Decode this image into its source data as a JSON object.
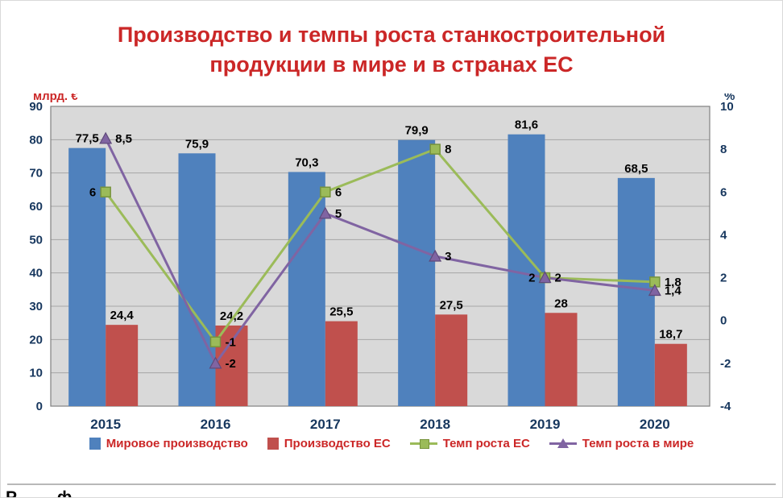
{
  "slide": {
    "title_line1": "Производство и темпы роста станкостроительной",
    "title_line2": "продукции в мире и в странах ЕС",
    "footer_fragment": "Р ф"
  },
  "colors": {
    "title": "#cb2727",
    "axis_text": "#17375e",
    "legend_text": "#cb2727",
    "left_unit": "#cb2727",
    "right_unit": "#17375e",
    "plot_bg": "#d9d9d9",
    "grid": "#a6a6a6",
    "plot_border": "#808080",
    "data_label": "#000000"
  },
  "chart_data": {
    "type": "combo-bar-line",
    "title": "Производство и темпы роста станкостроительной продукции в мире и в странах ЕС",
    "categories": [
      "2015",
      "2016",
      "2017",
      "2018",
      "2019",
      "2020"
    ],
    "left_axis": {
      "label": "млрд. €",
      "min": 0,
      "max": 90,
      "step": 10,
      "ticks": [
        0,
        10,
        20,
        30,
        40,
        50,
        60,
        70,
        80,
        90
      ]
    },
    "right_axis": {
      "label": "%",
      "min": -4,
      "max": 10,
      "step": 2,
      "ticks": [
        -4,
        -2,
        0,
        2,
        4,
        6,
        8,
        10
      ]
    },
    "grid": true,
    "legend_position": "bottom",
    "series": [
      {
        "name": "Мировое производство",
        "type": "bar",
        "axis": "left",
        "color": "#4f81bd",
        "values": [
          77.5,
          75.9,
          70.3,
          79.9,
          81.6,
          68.5
        ],
        "labels": [
          "77,5",
          "75,9",
          "70,3",
          "79,9",
          "81,6",
          "68,5"
        ]
      },
      {
        "name": "Производство ЕС",
        "type": "bar",
        "axis": "left",
        "color": "#c0504d",
        "values": [
          24.4,
          24.2,
          25.5,
          27.5,
          28,
          18.7
        ],
        "labels": [
          "24,4",
          "24,2",
          "25,5",
          "27,5",
          "28",
          "18,7"
        ]
      },
      {
        "name": "Темп роста ЕС",
        "type": "line",
        "marker": "square",
        "axis": "right",
        "color": "#9bbb59",
        "marker_border": "#77933c",
        "values": [
          6,
          -1,
          6,
          8,
          2,
          1.8
        ],
        "labels": [
          "6",
          "-1",
          "6",
          "8",
          "2",
          "1,8"
        ],
        "label_side": [
          "left",
          "right",
          "right",
          "right",
          "right",
          "right"
        ]
      },
      {
        "name": "Темп роста в мире",
        "type": "line",
        "marker": "triangle",
        "axis": "right",
        "color": "#8064a2",
        "marker_border": "#5f497a",
        "values": [
          8.5,
          -2,
          5,
          3,
          2,
          1.4
        ],
        "labels": [
          "8,5",
          "-2",
          "5",
          "3",
          "2",
          "1,4"
        ],
        "label_side": [
          "right",
          "right",
          "right",
          "right",
          "left",
          "right"
        ]
      }
    ]
  }
}
